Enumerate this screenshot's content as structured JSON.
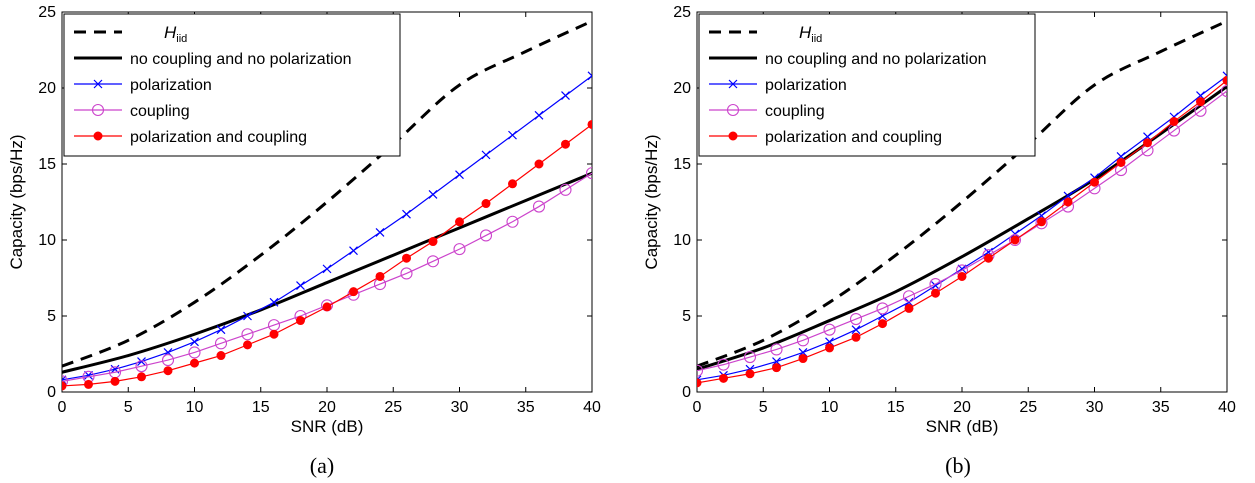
{
  "chart_data": [
    {
      "type": "line",
      "caption": "(a)",
      "xlabel": "SNR (dB)",
      "ylabel": "Capacity (bps/Hz)",
      "xlim": [
        0,
        40
      ],
      "ylim": [
        0,
        25
      ],
      "xticks": [
        0,
        5,
        10,
        15,
        20,
        25,
        30,
        35,
        40
      ],
      "yticks": [
        0,
        5,
        10,
        15,
        20,
        25
      ],
      "grid": false,
      "legend_position": "top-left",
      "series": [
        {
          "key": "hiid",
          "name_main": "H",
          "name_sub": "iid",
          "color": "#000000",
          "style": "dashed",
          "marker": "none",
          "x": [
            0,
            5,
            10,
            15,
            20,
            25,
            30,
            35,
            40
          ],
          "y": [
            1.7,
            3.4,
            5.9,
            9.0,
            12.5,
            16.3,
            20.2,
            22.4,
            24.4
          ]
        },
        {
          "key": "nocoup",
          "name": "no coupling and no polarization",
          "color": "#000000",
          "style": "solid",
          "marker": "none",
          "x": [
            0,
            5,
            10,
            15,
            20,
            25,
            30,
            35,
            40
          ],
          "y": [
            1.3,
            2.4,
            3.8,
            5.4,
            7.2,
            9.0,
            10.8,
            12.6,
            14.4
          ]
        },
        {
          "key": "pol",
          "name": "polarization",
          "color": "#0000ff",
          "style": "solid",
          "marker": "x",
          "x": [
            0,
            2,
            4,
            6,
            8,
            10,
            12,
            14,
            16,
            18,
            20,
            22,
            24,
            26,
            28,
            30,
            32,
            34,
            36,
            38,
            40
          ],
          "y": [
            0.8,
            1.1,
            1.5,
            2.0,
            2.6,
            3.3,
            4.1,
            5.0,
            5.9,
            7.0,
            8.1,
            9.3,
            10.5,
            11.7,
            13.0,
            14.3,
            15.6,
            16.9,
            18.2,
            19.5,
            20.8
          ]
        },
        {
          "key": "coup",
          "name": "coupling",
          "color": "#cc44cc",
          "style": "solid",
          "marker": "o",
          "x": [
            0,
            2,
            4,
            6,
            8,
            10,
            12,
            14,
            16,
            18,
            20,
            22,
            24,
            26,
            28,
            30,
            32,
            34,
            36,
            38,
            40
          ],
          "y": [
            0.7,
            1.0,
            1.3,
            1.7,
            2.1,
            2.6,
            3.2,
            3.8,
            4.4,
            5.0,
            5.7,
            6.4,
            7.1,
            7.8,
            8.6,
            9.4,
            10.3,
            11.2,
            12.2,
            13.3,
            14.4
          ]
        },
        {
          "key": "polcoup",
          "name": "polarization and coupling",
          "color": "#ff0000",
          "style": "solid",
          "marker": "dot",
          "x": [
            0,
            2,
            4,
            6,
            8,
            10,
            12,
            14,
            16,
            18,
            20,
            22,
            24,
            26,
            28,
            30,
            32,
            34,
            36,
            38,
            40
          ],
          "y": [
            0.4,
            0.5,
            0.7,
            1.0,
            1.4,
            1.9,
            2.4,
            3.1,
            3.8,
            4.7,
            5.6,
            6.6,
            7.6,
            8.8,
            9.9,
            11.2,
            12.4,
            13.7,
            15.0,
            16.3,
            17.6
          ]
        }
      ]
    },
    {
      "type": "line",
      "caption": "(b)",
      "xlabel": "SNR (dB)",
      "ylabel": "Capacity (bps/Hz)",
      "xlim": [
        0,
        40
      ],
      "ylim": [
        0,
        25
      ],
      "xticks": [
        0,
        5,
        10,
        15,
        20,
        25,
        30,
        35,
        40
      ],
      "yticks": [
        0,
        5,
        10,
        15,
        20,
        25
      ],
      "grid": false,
      "legend_position": "top-left",
      "series": [
        {
          "key": "hiid",
          "name_main": "H",
          "name_sub": "iid",
          "color": "#000000",
          "style": "dashed",
          "marker": "none",
          "x": [
            0,
            5,
            10,
            15,
            20,
            25,
            30,
            35,
            40
          ],
          "y": [
            1.7,
            3.4,
            5.9,
            9.0,
            12.5,
            16.3,
            20.2,
            22.4,
            24.4
          ]
        },
        {
          "key": "nocoup",
          "name": "no coupling and no polarization",
          "color": "#000000",
          "style": "solid",
          "marker": "none",
          "x": [
            0,
            5,
            10,
            15,
            20,
            25,
            30,
            35,
            40
          ],
          "y": [
            1.5,
            2.9,
            4.7,
            6.6,
            8.9,
            11.4,
            14.0,
            17.0,
            20.1
          ]
        },
        {
          "key": "pol",
          "name": "polarization",
          "color": "#0000ff",
          "style": "solid",
          "marker": "x",
          "x": [
            0,
            2,
            4,
            6,
            8,
            10,
            12,
            14,
            16,
            18,
            20,
            22,
            24,
            26,
            28,
            30,
            32,
            34,
            36,
            38,
            40
          ],
          "y": [
            0.8,
            1.1,
            1.5,
            2.0,
            2.6,
            3.3,
            4.1,
            5.0,
            5.9,
            7.0,
            8.1,
            9.2,
            10.4,
            11.6,
            12.9,
            14.1,
            15.5,
            16.8,
            18.1,
            19.5,
            20.8
          ]
        },
        {
          "key": "coup",
          "name": "coupling",
          "color": "#cc44cc",
          "style": "solid",
          "marker": "o",
          "x": [
            0,
            2,
            4,
            6,
            8,
            10,
            12,
            14,
            16,
            18,
            20,
            22,
            24,
            26,
            28,
            30,
            32,
            34,
            36,
            38,
            40
          ],
          "y": [
            1.4,
            1.8,
            2.3,
            2.8,
            3.4,
            4.1,
            4.8,
            5.5,
            6.3,
            7.1,
            8.0,
            9.0,
            10.0,
            11.1,
            12.2,
            13.4,
            14.6,
            15.9,
            17.2,
            18.5,
            19.8
          ]
        },
        {
          "key": "polcoup",
          "name": "polarization and coupling",
          "color": "#ff0000",
          "style": "solid",
          "marker": "dot",
          "x": [
            0,
            2,
            4,
            6,
            8,
            10,
            12,
            14,
            16,
            18,
            20,
            22,
            24,
            26,
            28,
            30,
            32,
            34,
            36,
            38,
            40
          ],
          "y": [
            0.6,
            0.9,
            1.2,
            1.6,
            2.2,
            2.9,
            3.6,
            4.5,
            5.5,
            6.5,
            7.6,
            8.8,
            10.0,
            11.2,
            12.5,
            13.8,
            15.1,
            16.4,
            17.8,
            19.1,
            20.5
          ]
        }
      ]
    }
  ]
}
